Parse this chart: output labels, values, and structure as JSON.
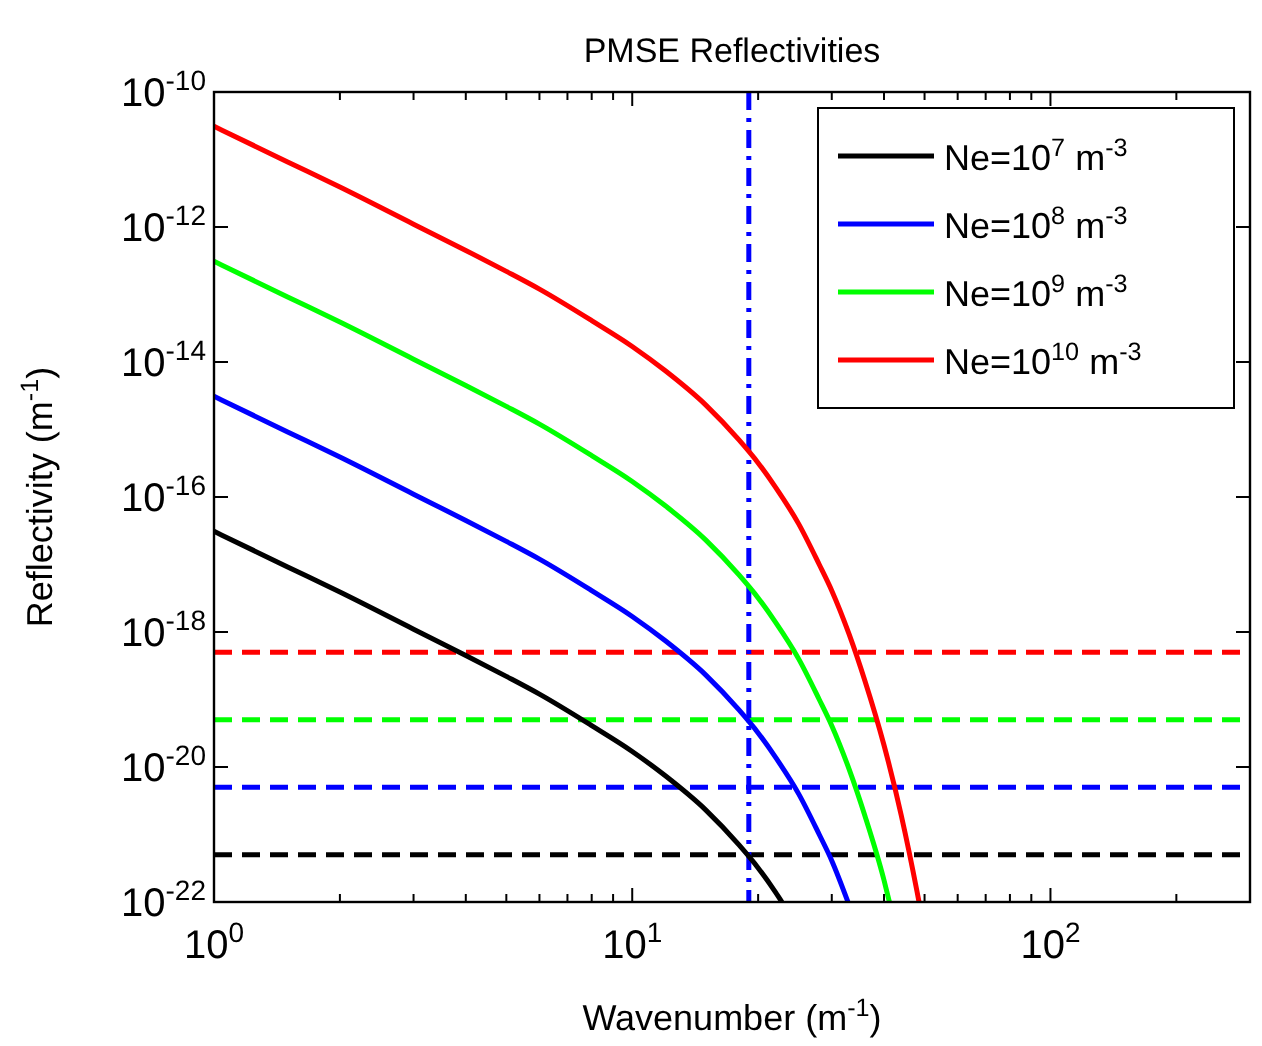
{
  "chart_data": {
    "type": "line",
    "title": "PMSE Reflectivities",
    "xlabel": "Wavenumber (m$^{-1}$)",
    "ylabel": "Reflectivity (m$^{-1}$)",
    "log": "xy",
    "grid": false,
    "legend": "top right",
    "line_style": "solid",
    "xlim": [
      1,
      300
    ],
    "ylim": [
      1e-22,
      1e-10
    ],
    "xticks": [
      {
        "value": 1,
        "label": "10$^{0}$"
      },
      {
        "value": 2,
        "label": null
      },
      {
        "value": 3,
        "label": null
      },
      {
        "value": 4,
        "label": null
      },
      {
        "value": 5,
        "label": null
      },
      {
        "value": 6,
        "label": null
      },
      {
        "value": 7,
        "label": null
      },
      {
        "value": 8,
        "label": null
      },
      {
        "value": 9,
        "label": null
      },
      {
        "value": 10,
        "label": "10$^{1}$"
      },
      {
        "value": 20,
        "label": null
      },
      {
        "value": 30,
        "label": null
      },
      {
        "value": 40,
        "label": null
      },
      {
        "value": 50,
        "label": null
      },
      {
        "value": 60,
        "label": null
      },
      {
        "value": 70,
        "label": null
      },
      {
        "value": 80,
        "label": null
      },
      {
        "value": 90,
        "label": null
      },
      {
        "value": 100,
        "label": "10$^{2}$"
      },
      {
        "value": 200,
        "label": null
      },
      {
        "value": 300,
        "label": null
      }
    ],
    "yticks": [
      {
        "value": 1e-22,
        "label": "10$^{-22}$"
      },
      {
        "value": 1e-20,
        "label": "10$^{-20}$"
      },
      {
        "value": 1e-18,
        "label": "10$^{-18}$"
      },
      {
        "value": 1e-16,
        "label": "10$^{-16}$"
      },
      {
        "value": 1e-14,
        "label": "10$^{-14}$"
      },
      {
        "value": 1e-12,
        "label": "10$^{-12}$"
      },
      {
        "value": 1e-10,
        "label": "10$^{-10}$"
      }
    ],
    "series": [
      {
        "name": "Ne=10$^{7}$ m$^{-3}$",
        "color": "#000000",
        "x": [
          1,
          1.5,
          2,
          3,
          4,
          5,
          6,
          8,
          10,
          12,
          15,
          18,
          20,
          22,
          22.8
        ],
        "values": [
          3.1e-17,
          9.2e-18,
          3.9e-18,
          1.1e-18,
          4.5e-19,
          2.2e-19,
          1.2e-19,
          4.1e-20,
          1.7e-20,
          7.4e-21,
          2.3e-21,
          7e-22,
          3.2e-22,
          1.4e-22,
          1e-22
        ]
      },
      {
        "name": "Ne=10$^{8}$ m$^{-3}$",
        "color": "#0000ff",
        "x": [
          1,
          1.5,
          2,
          3,
          4,
          5,
          6,
          8,
          10,
          12,
          15,
          18,
          20,
          22,
          25,
          28,
          30,
          32.8
        ],
        "values": [
          3.1e-15,
          9.2e-16,
          3.9e-16,
          1.1e-16,
          4.5e-17,
          2.2e-17,
          1.2e-17,
          4.1e-18,
          1.7e-18,
          7.4e-19,
          2.3e-19,
          7e-20,
          3.2e-20,
          1.4e-20,
          4e-21,
          1e-21,
          4.1e-22,
          1e-22
        ]
      },
      {
        "name": "Ne=10$^{9}$ m$^{-3}$",
        "color": "#00ff00",
        "x": [
          1,
          1.5,
          2,
          3,
          4,
          5,
          6,
          8,
          10,
          12,
          15,
          18,
          20,
          22,
          25,
          28,
          30,
          33,
          36,
          40,
          41.2
        ],
        "values": [
          3.1e-13,
          9.2e-14,
          3.9e-14,
          1.1e-14,
          4.5e-15,
          2.2e-15,
          1.2e-15,
          4.1e-16,
          1.7e-16,
          7.4e-17,
          2.3e-17,
          7e-18,
          3.2e-18,
          1.4e-18,
          4e-19,
          1e-19,
          4.1e-20,
          9.3e-21,
          1.9e-21,
          2.1e-22,
          1e-22
        ]
      },
      {
        "name": "Ne=10$^{10}$ m$^{-3}$",
        "color": "#ff0000",
        "x": [
          1,
          1.5,
          2,
          3,
          4,
          5,
          6,
          8,
          10,
          12,
          15,
          18,
          20,
          22,
          25,
          28,
          30,
          33,
          36,
          40,
          44,
          48,
          48.5
        ],
        "values": [
          3.1e-11,
          9.2e-12,
          3.9e-12,
          1.1e-12,
          4.5e-13,
          2.2e-13,
          1.2e-13,
          4.1e-14,
          1.7e-14,
          7.4e-15,
          2.3e-15,
          7e-16,
          3.2e-16,
          1.4e-16,
          4e-17,
          1e-17,
          4.1e-18,
          9.3e-19,
          1.9e-19,
          2.1e-20,
          1.9e-21,
          1.4e-22,
          1e-22
        ]
      }
    ],
    "ref_lines": [
      {
        "axis": "y",
        "value": 5e-19,
        "color": "#ff0000",
        "line_style": "dashed"
      },
      {
        "axis": "y",
        "value": 5e-20,
        "color": "#00ff00",
        "line_style": "dashed"
      },
      {
        "axis": "y",
        "value": 5e-21,
        "color": "#0000ff",
        "line_style": "dashed"
      },
      {
        "axis": "y",
        "value": 5e-22,
        "color": "#000000",
        "line_style": "dashed"
      },
      {
        "axis": "x",
        "value": 19,
        "color": "#0000ff",
        "line_style": "dashdot"
      }
    ]
  }
}
